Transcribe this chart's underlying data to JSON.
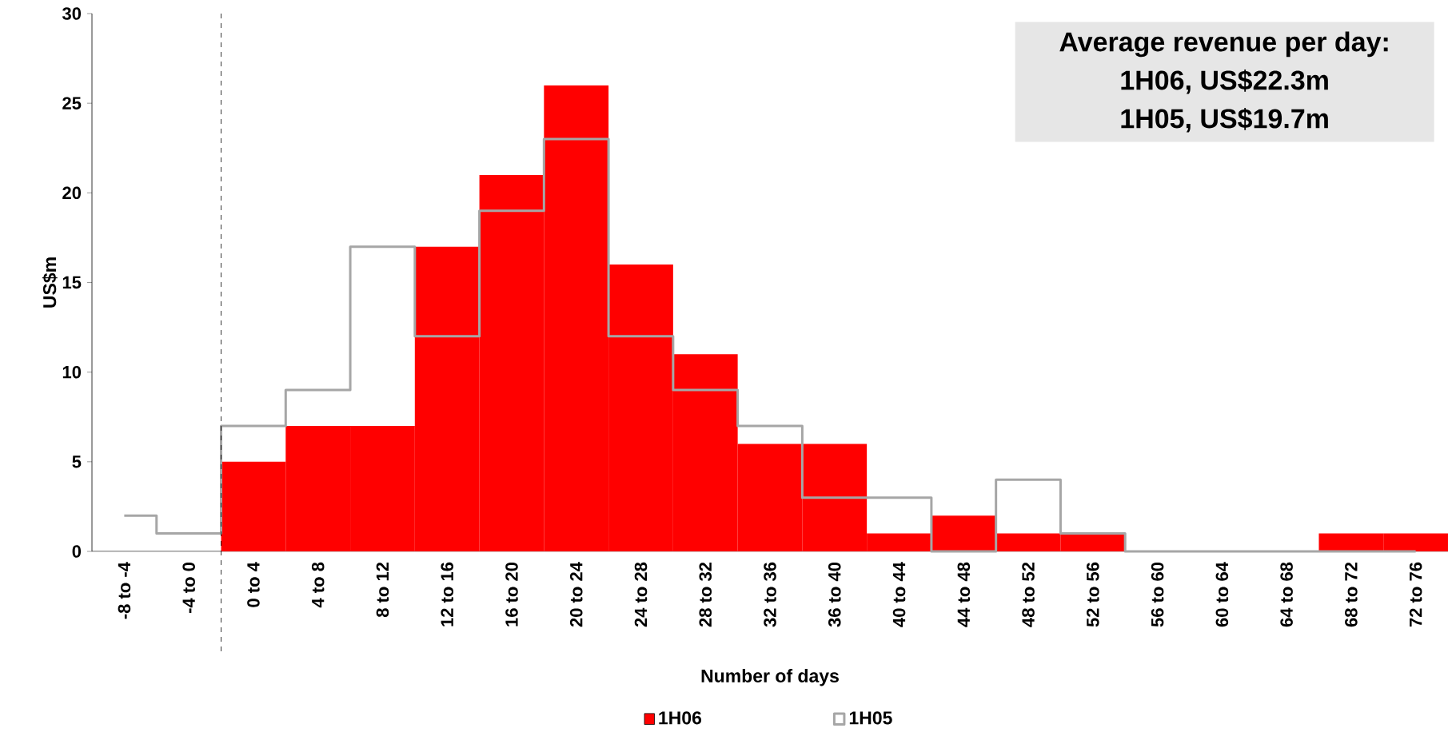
{
  "chart_data": {
    "type": "bar",
    "ylabel": "US$m",
    "xlabel": "Number of days",
    "categories": [
      "-8 to -4",
      "-4 to 0",
      "0 to 4",
      "4 to 8",
      "8 to 12",
      "12 to 16",
      "16 to 20",
      "20 to 24",
      "24 to 28",
      "28 to 32",
      "32 to 36",
      "36 to 40",
      "40 to 44",
      "44 to 48",
      "48 to 52",
      "52 to 56",
      "56 to 60",
      "60 to 64",
      "64 to 68",
      "68 to 72",
      "72 to 76"
    ],
    "series": [
      {
        "name": "1H06",
        "color": "#ff0000",
        "values": [
          0,
          0,
          5,
          7,
          7,
          17,
          21,
          26,
          16,
          11,
          6,
          6,
          1,
          2,
          1,
          1,
          0,
          0,
          0,
          1,
          1
        ]
      },
      {
        "name": "1H05",
        "type": "step",
        "color": "#a6a6a6",
        "values": [
          2,
          1,
          7,
          9,
          17,
          12,
          19,
          23,
          12,
          9,
          7,
          3,
          3,
          0,
          4,
          1,
          0,
          0,
          0,
          0,
          0
        ]
      }
    ],
    "ylim": [
      0,
      30
    ],
    "yticks": [
      0,
      5,
      10,
      15,
      20,
      25,
      30
    ],
    "annotations": [
      "Average revenue per day:",
      "1H06, US$22.3m",
      "1H05, US$19.7m"
    ],
    "legend": "bottom",
    "grid": false
  }
}
